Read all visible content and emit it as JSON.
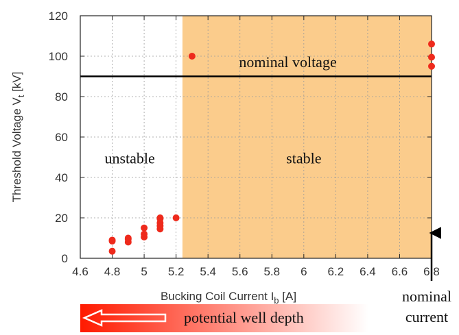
{
  "chart_data": {
    "type": "scatter",
    "title": "",
    "xlabel": {
      "main": "Bucking Coil Current I",
      "sub": "b",
      "unit": " [A]"
    },
    "ylabel": {
      "main": "Threshold Voltage V",
      "sub": "t",
      "unit": " [kV]"
    },
    "xlim": [
      4.6,
      6.8
    ],
    "ylim": [
      0,
      120
    ],
    "x_ticks": [
      "4.6",
      "4.8",
      "5",
      "5.2",
      "5.4",
      "5.6",
      "5.8",
      "6",
      "6.2",
      "6.4",
      "6.6",
      "6.8"
    ],
    "y_ticks": [
      "0",
      "20",
      "40",
      "60",
      "80",
      "100",
      "120"
    ],
    "grid": true,
    "point_color": "#ee2a1c",
    "points": [
      {
        "x": 4.8,
        "y": 3.5
      },
      {
        "x": 4.8,
        "y": 8.5
      },
      {
        "x": 4.8,
        "y": 9
      },
      {
        "x": 4.9,
        "y": 8
      },
      {
        "x": 4.9,
        "y": 9.5
      },
      {
        "x": 4.9,
        "y": 10
      },
      {
        "x": 5.0,
        "y": 10.5
      },
      {
        "x": 5.0,
        "y": 12
      },
      {
        "x": 5.0,
        "y": 15
      },
      {
        "x": 5.1,
        "y": 14.5
      },
      {
        "x": 5.1,
        "y": 16
      },
      {
        "x": 5.1,
        "y": 17.5
      },
      {
        "x": 5.1,
        "y": 19.5
      },
      {
        "x": 5.1,
        "y": 20
      },
      {
        "x": 5.2,
        "y": 20
      },
      {
        "x": 5.3,
        "y": 100
      },
      {
        "x": 6.8,
        "y": 95
      },
      {
        "x": 6.8,
        "y": 99.5
      },
      {
        "x": 6.8,
        "y": 106
      }
    ],
    "stable_region": {
      "x_from": 5.24,
      "x_to": 6.8,
      "color": "#fbcc8c"
    },
    "reference_line": {
      "y": 90,
      "label": "nominal voltage",
      "color": "#000000"
    },
    "region_labels": {
      "unstable": "unstable",
      "stable": "stable"
    },
    "nominal_current": {
      "x": 6.8,
      "label_line1": "nominal",
      "label_line2": "current"
    },
    "well_depth_label": "potential well depth",
    "gradient_colors": [
      "#ff1a00",
      "#ffffff"
    ]
  }
}
